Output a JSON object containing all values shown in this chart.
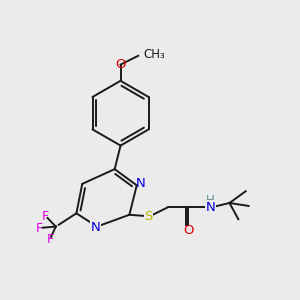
{
  "bg": "#ebebeb",
  "bc": "#1a1a1a",
  "colors": {
    "N": "#0000e0",
    "O": "#e00000",
    "S": "#b8b800",
    "F": "#e000e0",
    "H": "#609090",
    "C": "#1a1a1a"
  },
  "lw": 1.4,
  "dbo": 0.05
}
